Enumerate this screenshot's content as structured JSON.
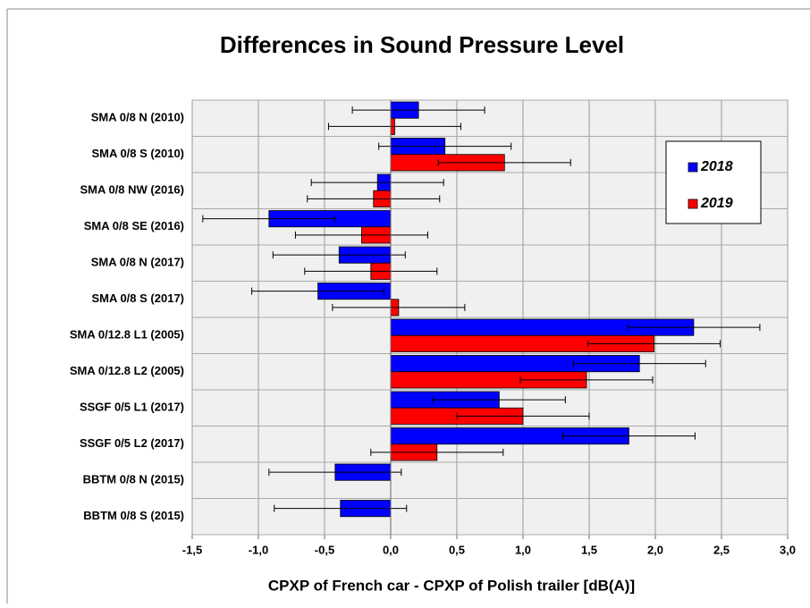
{
  "chart_data": {
    "type": "hbar",
    "title": "Differences in Sound Pressure Level",
    "x_label": "CPXP of French car - CPXP of Polish trailer    [dB(A)]",
    "categories": [
      "SMA 0/8 N (2010)",
      "SMA 0/8 S (2010)",
      "SMA 0/8 NW (2016)",
      "SMA 0/8 SE (2016)",
      "SMA 0/8 N (2017)",
      "SMA 0/8 S (2017)",
      "SMA 0/12.8 L1 (2005)",
      "SMA 0/12.8 L2 (2005)",
      "SSGF 0/5 L1 (2017)",
      "SSGF 0/5 L2 (2017)",
      "BBTM 0/8 N (2015)",
      "BBTM 0/8 S (2015)"
    ],
    "series": [
      {
        "name": "2018",
        "color": "#0000ff",
        "values": [
          0.21,
          0.41,
          -0.1,
          -0.92,
          -0.39,
          -0.55,
          2.29,
          1.88,
          0.82,
          1.8,
          -0.42,
          -0.38
        ],
        "errors": [
          0.5,
          0.5,
          0.5,
          0.5,
          0.5,
          0.5,
          0.5,
          0.5,
          0.5,
          0.5,
          0.5,
          0.5
        ]
      },
      {
        "name": "2019",
        "color": "#ff0000",
        "values": [
          0.03,
          0.86,
          -0.13,
          -0.22,
          -0.15,
          0.06,
          1.99,
          1.48,
          1.0,
          0.35,
          null,
          null
        ],
        "errors": [
          0.5,
          0.5,
          0.5,
          0.5,
          0.5,
          0.5,
          0.5,
          0.5,
          0.5,
          0.5,
          null,
          null
        ]
      }
    ],
    "xlim": [
      -1.5,
      3.0
    ],
    "xticks": [
      {
        "value": -1.5,
        "label": "-1,5"
      },
      {
        "value": -1.0,
        "label": "-1,0"
      },
      {
        "value": -0.5,
        "label": "-0,5"
      },
      {
        "value": 0,
        "label": "0,0"
      },
      {
        "value": 0.5,
        "label": "0,5"
      },
      {
        "value": 1.0,
        "label": "1,0"
      },
      {
        "value": 1.5,
        "label": "1,5"
      },
      {
        "value": 2.0,
        "label": "2,0"
      },
      {
        "value": 2.5,
        "label": "2,5"
      },
      {
        "value": 3.0,
        "label": "3,0"
      }
    ],
    "grid": true
  }
}
